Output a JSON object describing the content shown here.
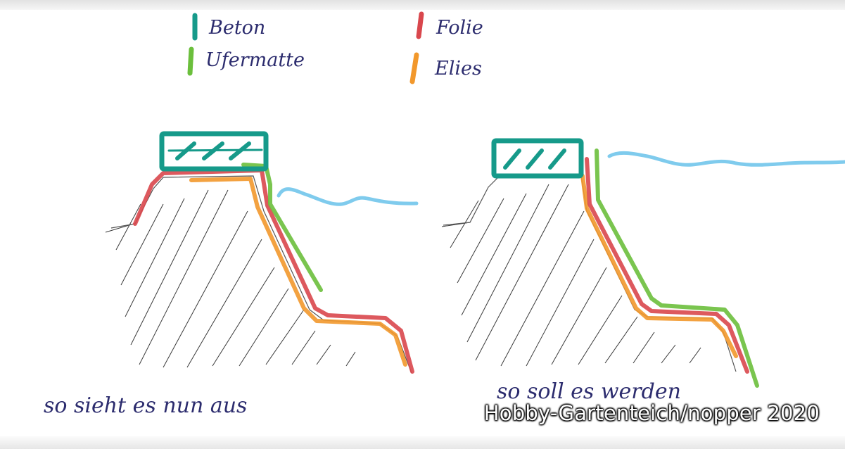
{
  "legend": {
    "items": [
      {
        "label": "Beton",
        "color": "#169a8a"
      },
      {
        "label": "Ufermatte",
        "color": "#6bbf3c"
      },
      {
        "label": "Folie",
        "color": "#d9474d"
      },
      {
        "label": "Elies",
        "color": "#f2982c"
      }
    ]
  },
  "water_color": "#7fcbed",
  "captions": {
    "left": "so sieht es nun aus",
    "right": "so soll es werden"
  },
  "watermark": "Hobby-Gartenteich/nopper 2020"
}
